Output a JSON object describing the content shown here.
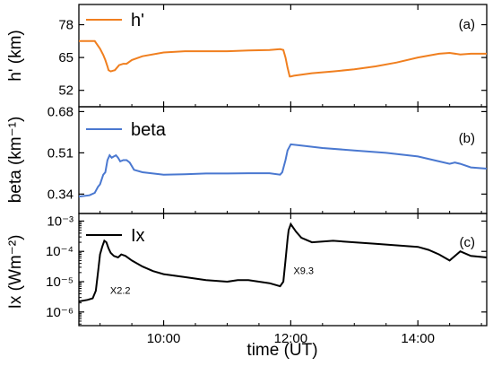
{
  "colors": {
    "h": "#f07f1f",
    "beta": "#4a78d0",
    "ix": "#000000",
    "axis": "#000000"
  },
  "chart_data": [
    {
      "type": "line",
      "panel_tag": "(a)",
      "ylabel": "h' (km)",
      "yticks": [
        "52",
        "65",
        "78"
      ],
      "ytick_values": [
        52,
        65,
        78
      ],
      "ylim": [
        45.5,
        86
      ],
      "yscale": "linear",
      "series": [
        {
          "name": "h'",
          "x": [
            "08:40",
            "08:55",
            "09:00",
            "09:03",
            "09:05",
            "09:07",
            "09:08",
            "09:10",
            "09:14",
            "09:18",
            "09:22",
            "09:25",
            "09:30",
            "09:40",
            "10:00",
            "10:20",
            "10:40",
            "11:00",
            "11:20",
            "11:40",
            "11:50",
            "11:53",
            "11:55",
            "11:57",
            "11:59",
            "12:00",
            "12:03",
            "12:10",
            "12:20",
            "12:40",
            "13:00",
            "13:20",
            "13:40",
            "14:00",
            "14:20",
            "14:30",
            "14:40",
            "14:50",
            "15:05"
          ],
          "values": [
            71.5,
            71.5,
            68.5,
            66,
            64,
            61.5,
            60,
            59.5,
            60,
            62,
            62.5,
            62.5,
            64,
            65.5,
            67,
            67.5,
            67.5,
            67.5,
            67.8,
            68,
            68.3,
            68,
            65,
            61,
            57.5,
            57.5,
            57.8,
            58.2,
            58.8,
            59.5,
            60.3,
            61.5,
            63,
            65,
            66.5,
            66.8,
            66.2,
            66.5,
            66.5
          ]
        }
      ]
    },
    {
      "type": "line",
      "panel_tag": "(b)",
      "ylabel": "beta (km⁻¹)",
      "yticks": [
        "0.34",
        "0.51",
        "0.68"
      ],
      "ytick_values": [
        0.34,
        0.51,
        0.68
      ],
      "ylim": [
        0.26,
        0.7
      ],
      "yscale": "linear",
      "series": [
        {
          "name": "beta",
          "x": [
            "08:40",
            "08:50",
            "08:55",
            "08:58",
            "09:00",
            "09:03",
            "09:05",
            "09:07",
            "09:09",
            "09:11",
            "09:13",
            "09:15",
            "09:17",
            "09:19",
            "09:22",
            "09:25",
            "09:28",
            "09:32",
            "09:40",
            "10:00",
            "10:20",
            "10:40",
            "11:00",
            "11:20",
            "11:40",
            "11:50",
            "11:52",
            "11:55",
            "11:57",
            "12:00",
            "12:10",
            "12:30",
            "13:00",
            "13:30",
            "14:00",
            "14:20",
            "14:30",
            "14:35",
            "14:40",
            "14:50",
            "15:05"
          ],
          "values": [
            0.33,
            0.335,
            0.345,
            0.37,
            0.38,
            0.42,
            0.43,
            0.48,
            0.5,
            0.49,
            0.495,
            0.5,
            0.49,
            0.475,
            0.48,
            0.48,
            0.47,
            0.44,
            0.43,
            0.42,
            0.422,
            0.425,
            0.425,
            0.426,
            0.426,
            0.42,
            0.43,
            0.48,
            0.52,
            0.545,
            0.54,
            0.53,
            0.52,
            0.51,
            0.495,
            0.475,
            0.465,
            0.47,
            0.465,
            0.45,
            0.445
          ]
        }
      ]
    },
    {
      "type": "line",
      "panel_tag": "(c)",
      "ylabel": "Ix (Wm⁻²)",
      "yticks": [
        "10⁻⁶",
        "10⁻⁵",
        "10⁻⁴",
        "10⁻³"
      ],
      "ytick_values": [
        -6,
        -5,
        -4,
        -3
      ],
      "ylim": [
        -6.45,
        -2.75
      ],
      "yscale": "log",
      "series": [
        {
          "name": "Ix",
          "x": [
            "08:40",
            "08:48",
            "08:53",
            "08:56",
            "08:58",
            "09:00",
            "09:02",
            "09:04",
            "09:06",
            "09:08",
            "09:10",
            "09:13",
            "09:17",
            "09:20",
            "09:24",
            "09:30",
            "09:40",
            "09:50",
            "10:00",
            "10:20",
            "10:40",
            "11:00",
            "11:10",
            "11:20",
            "11:30",
            "11:40",
            "11:50",
            "11:53",
            "11:55",
            "11:57",
            "11:58",
            "12:00",
            "12:02",
            "12:05",
            "12:10",
            "12:20",
            "12:40",
            "13:00",
            "13:20",
            "13:40",
            "14:00",
            "14:10",
            "14:20",
            "14:30",
            "14:40",
            "14:50",
            "15:05"
          ],
          "values": [
            -5.65,
            -5.6,
            -5.55,
            -5.3,
            -4.7,
            -4.1,
            -3.85,
            -3.65,
            -3.7,
            -3.9,
            -4.05,
            -4.15,
            -4.2,
            -4.1,
            -4.15,
            -4.3,
            -4.5,
            -4.65,
            -4.75,
            -4.85,
            -4.95,
            -5.0,
            -4.95,
            -4.95,
            -5.0,
            -5.05,
            -5.15,
            -5.0,
            -4.3,
            -3.6,
            -3.3,
            -3.1,
            -3.2,
            -3.35,
            -3.55,
            -3.7,
            -3.65,
            -3.7,
            -3.75,
            -3.8,
            -3.85,
            -3.95,
            -4.1,
            -4.3,
            -4.0,
            -4.15,
            -4.2
          ]
        }
      ],
      "annotations": [
        {
          "text": "X2.2",
          "x": "09:07",
          "y": -5.4
        },
        {
          "text": "X9.3",
          "x": "12:00",
          "y": -4.75
        }
      ]
    }
  ],
  "x_axis": {
    "xlabel": "time (UT)",
    "xlim": [
      "08:40",
      "15:05"
    ],
    "xticks": [
      "10:00",
      "12:00",
      "14:00"
    ]
  }
}
